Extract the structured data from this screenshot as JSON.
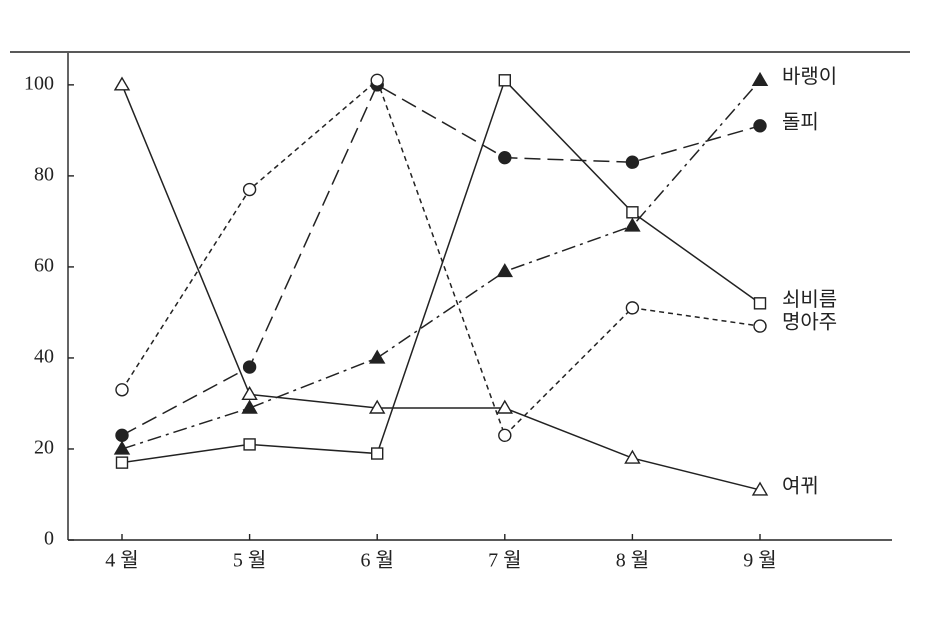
{
  "chart_data": {
    "type": "line",
    "categories": [
      "4 월",
      "5 월",
      "6 월",
      "7 월",
      "8 월",
      "9 월"
    ],
    "series": [
      {
        "name": "바랭이",
        "color": "#222222",
        "dash": "dashdot",
        "marker": "filled-triangle",
        "values": [
          20,
          29,
          40,
          59,
          69,
          101
        ]
      },
      {
        "name": "돌피",
        "color": "#222222",
        "dash": "longdash",
        "marker": "filled-circle",
        "values": [
          23,
          38,
          100,
          84,
          83,
          91
        ]
      },
      {
        "name": "쇠비름",
        "color": "#222222",
        "dash": "solid",
        "marker": "open-square",
        "values": [
          17,
          21,
          19,
          101,
          72,
          52
        ]
      },
      {
        "name": "명아주",
        "color": "#222222",
        "dash": "shortdash",
        "marker": "open-circle",
        "values": [
          33,
          77,
          101,
          23,
          51,
          47
        ]
      },
      {
        "name": "여뀌",
        "color": "#222222",
        "dash": "solid",
        "marker": "open-triangle",
        "values": [
          100,
          32,
          29,
          29,
          18,
          11
        ]
      }
    ],
    "ylim": [
      0,
      107
    ],
    "yticks": [
      0,
      20,
      40,
      60,
      80,
      100
    ],
    "grid": false
  }
}
